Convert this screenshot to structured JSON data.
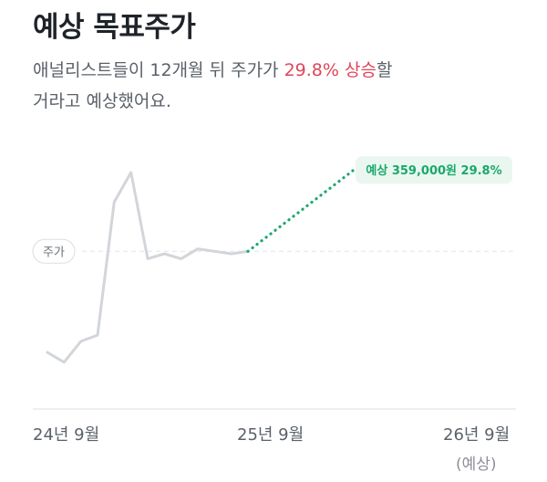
{
  "header": {
    "title": "예상 목표주가",
    "desc_part1": "애널리스트들이 12개월 뒤 주가가 ",
    "desc_highlight": "29.8% 상승",
    "desc_part2": "할",
    "desc_line2": "거라고 예상했어요."
  },
  "colors": {
    "history_line": "#d2d5d9",
    "forecast_line": "#1aa86a",
    "highlight": "#e0455a",
    "axis": "#e6e8eb"
  },
  "chart_data": {
    "type": "line",
    "x_labels": [
      "24년 9월",
      "25년 9월",
      "26년 9월"
    ],
    "x_sublabel": "(예상)",
    "current_label": "주가",
    "history": {
      "name": "주가",
      "values": [
        0.7,
        0.66,
        0.745,
        0.77,
        1.31,
        1.43,
        1.08,
        1.1,
        1.08,
        1.12,
        1.11,
        1.1,
        1.11
      ]
    },
    "forecast": {
      "name": "예상",
      "values": [
        1.11,
        1.44
      ],
      "label": "예상 359,000원 29.8%"
    },
    "current_level": 1.11
  }
}
